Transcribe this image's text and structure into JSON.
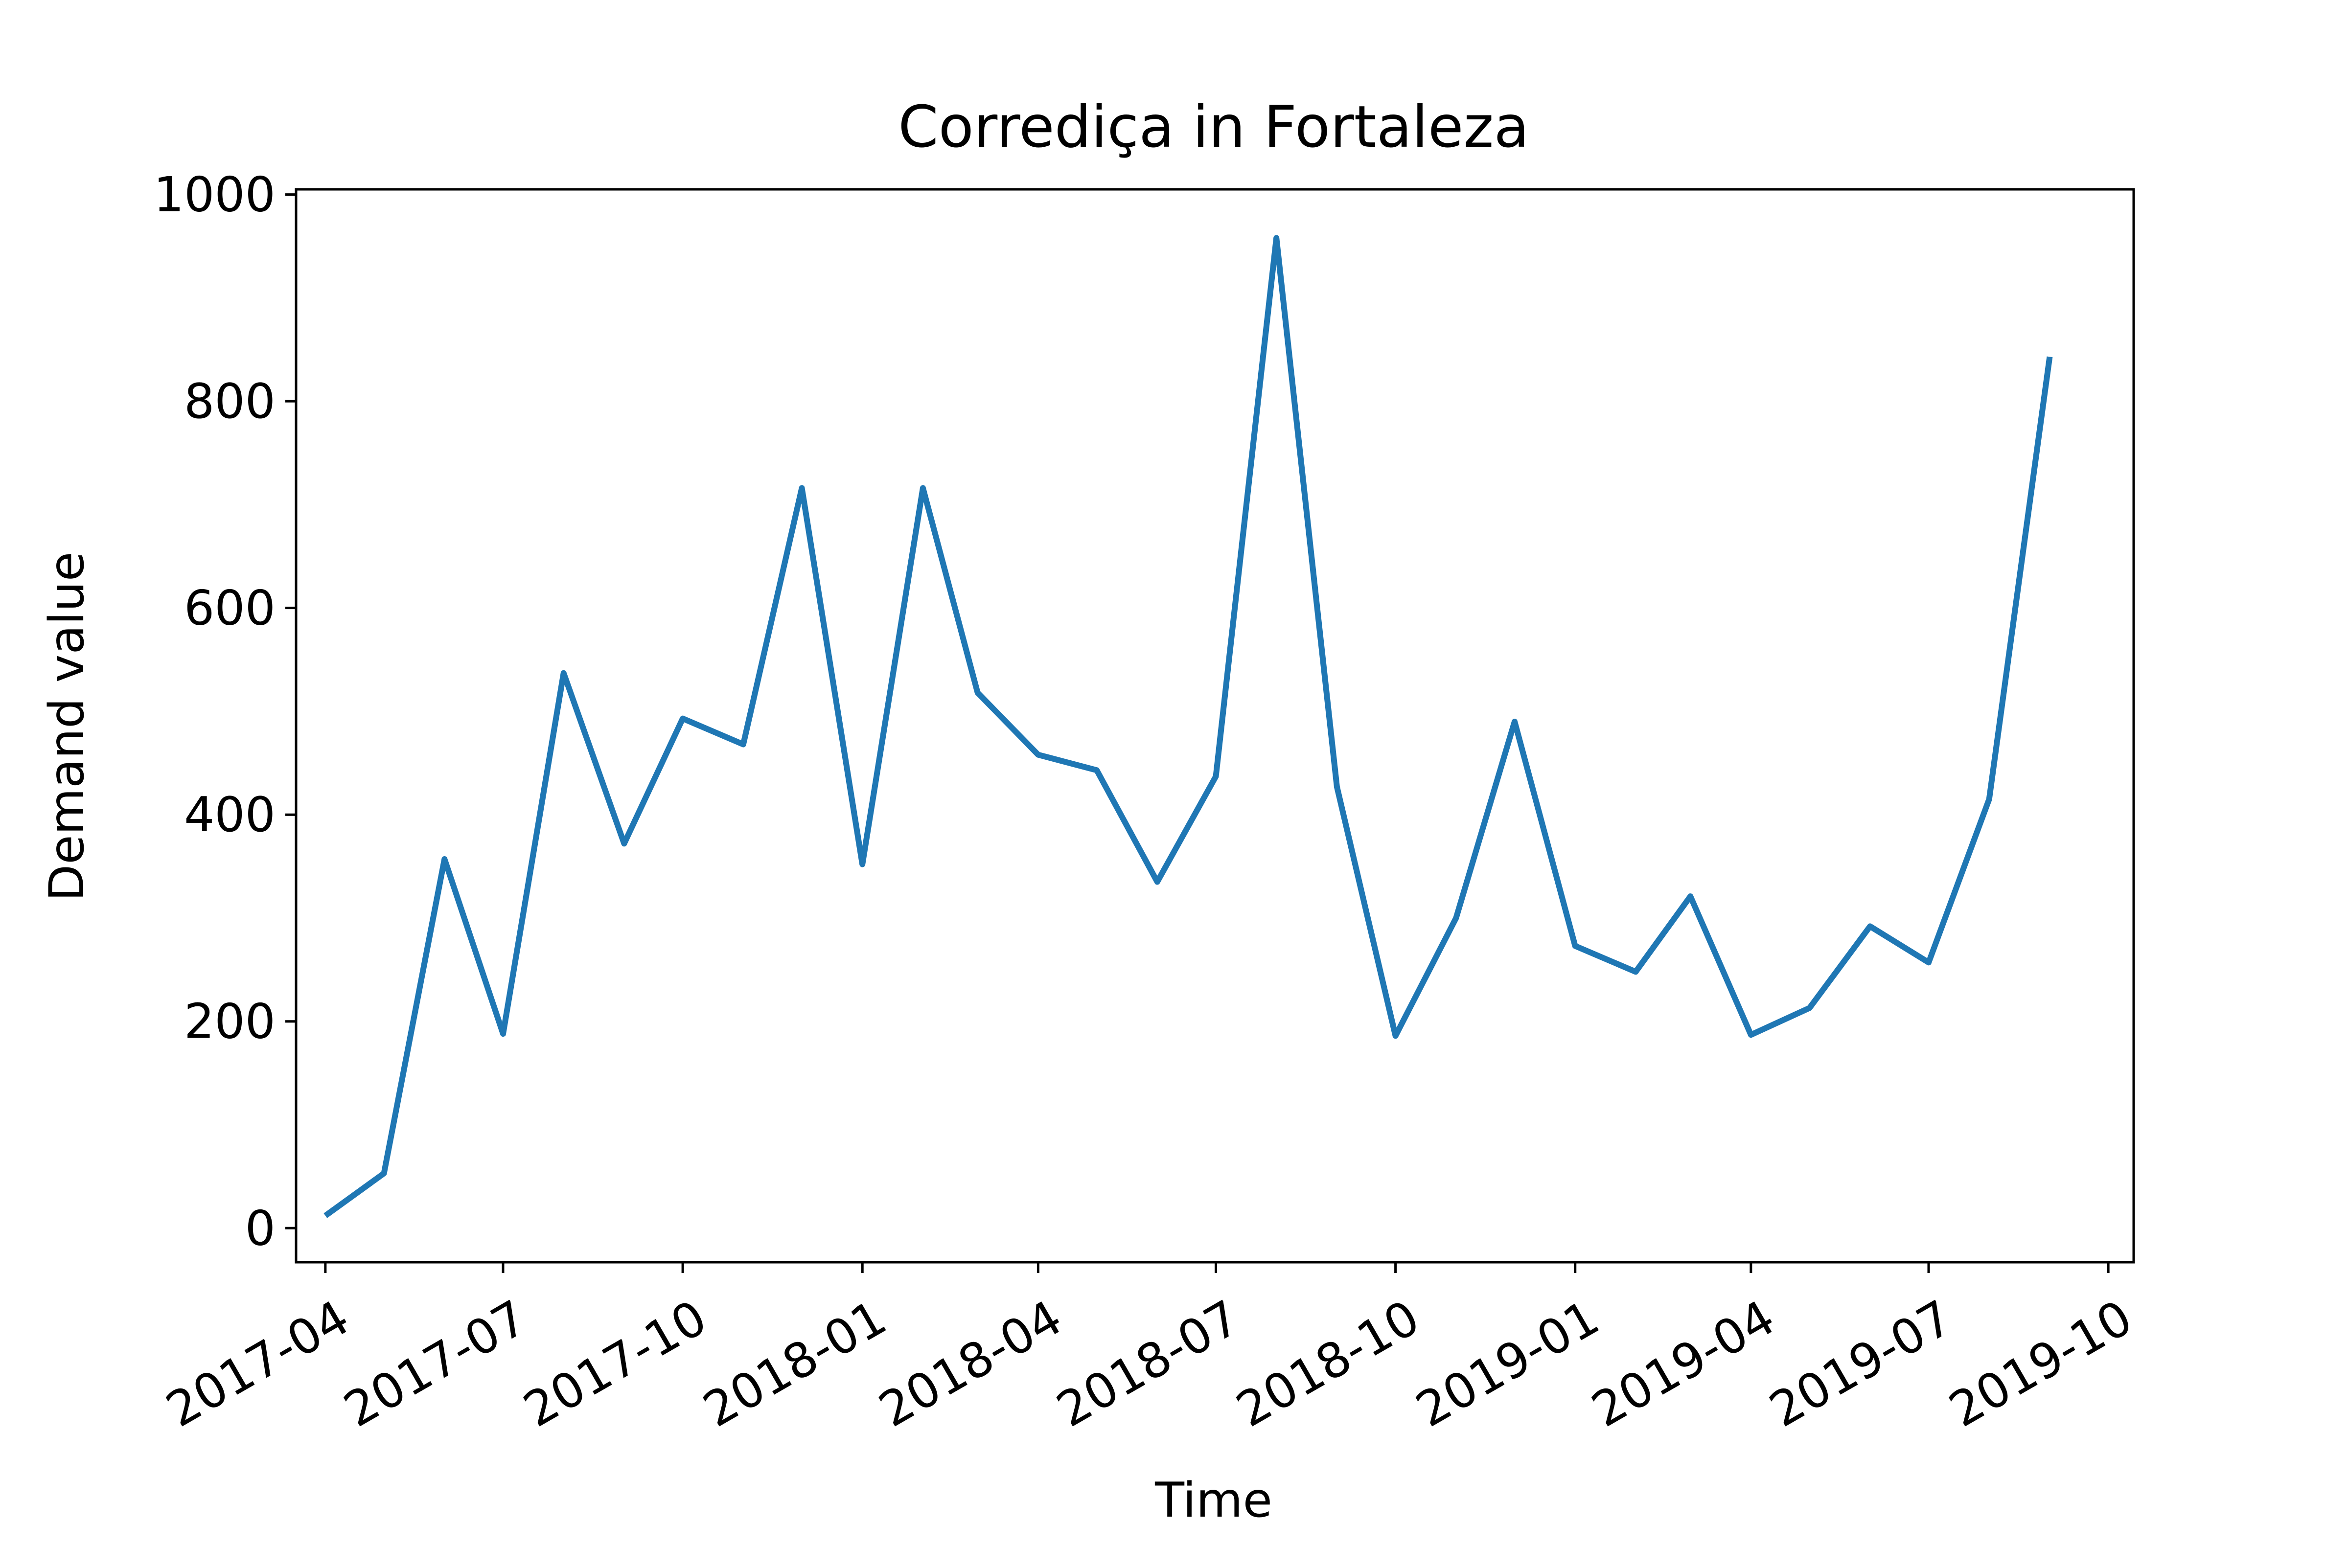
{
  "chart_data": {
    "type": "line",
    "title": "Corrediça in Fortaleza",
    "xlabel": "Time",
    "ylabel": "Demand value",
    "ylim": [
      -33,
      1005
    ],
    "xlim": [
      "2017-03-17",
      "2019-10-14"
    ],
    "grid": false,
    "x_ticks": [
      "2017-04",
      "2017-07",
      "2017-10",
      "2018-01",
      "2018-04",
      "2018-07",
      "2018-10",
      "2019-01",
      "2019-04",
      "2019-07",
      "2019-10"
    ],
    "y_ticks": [
      0,
      200,
      400,
      600,
      800,
      1000
    ],
    "series": [
      {
        "color": "#1f77b4",
        "x": [
          "2017-04-01",
          "2017-05-01",
          "2017-06-01",
          "2017-07-01",
          "2017-08-01",
          "2017-09-01",
          "2017-10-01",
          "2017-11-01",
          "2017-12-01",
          "2018-01-01",
          "2018-02-01",
          "2018-03-01",
          "2018-04-01",
          "2018-05-01",
          "2018-06-01",
          "2018-07-01",
          "2018-08-01",
          "2018-09-01",
          "2018-10-01",
          "2018-11-01",
          "2018-12-01",
          "2019-01-01",
          "2019-02-01",
          "2019-03-01",
          "2019-04-01",
          "2019-05-01",
          "2019-06-01",
          "2019-07-01",
          "2019-08-01",
          "2019-09-01"
        ],
        "values": [
          12,
          53,
          357,
          188,
          537,
          372,
          493,
          468,
          716,
          352,
          716,
          518,
          458,
          443,
          335,
          437,
          958,
          427,
          186,
          300,
          490,
          273,
          248,
          321,
          187,
          213,
          292,
          257,
          415,
          843
        ]
      }
    ]
  }
}
